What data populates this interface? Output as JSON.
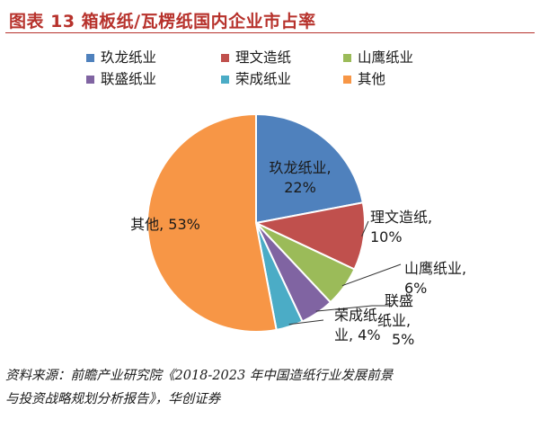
{
  "figure": {
    "title": "图表 13   箱板纸/瓦楞纸国内企业市占率",
    "source_line_1": "资料来源：前瞻产业研究院《2018-2023 年中国造纸行业发展前景",
    "source_line_2": "与投资战略规划分析报告》，华创证券"
  },
  "chart_data": {
    "type": "pie",
    "title": "",
    "series": [
      {
        "name": "玖龙纸业",
        "value": 22,
        "label_line_1": "玖龙纸业,",
        "label_line_2": "22%",
        "color": "#4f81bd"
      },
      {
        "name": "理文造纸",
        "value": 10,
        "label_line_1": "理文造纸,",
        "label_line_2": "10%",
        "color": "#c0504d"
      },
      {
        "name": "山鹰纸业",
        "value": 6,
        "label_line_1": "山鹰纸业,",
        "label_line_2": "6%",
        "color": "#9bbb59"
      },
      {
        "name": "联盛纸业",
        "value": 5,
        "label_line_1": "联盛",
        "label_line_2": "纸业,",
        "label_line_3": "5%",
        "color": "#8064a2"
      },
      {
        "name": "荣成纸业",
        "value": 4,
        "label_line_1": "荣成纸",
        "label_line_2": "业, 4%",
        "color": "#4bacc6"
      },
      {
        "name": "其他",
        "value": 53,
        "label_line_1": "其他, 53%",
        "color": "#f79646"
      }
    ],
    "legend_position": "top",
    "start_angle": "12 o'clock, clockwise"
  }
}
